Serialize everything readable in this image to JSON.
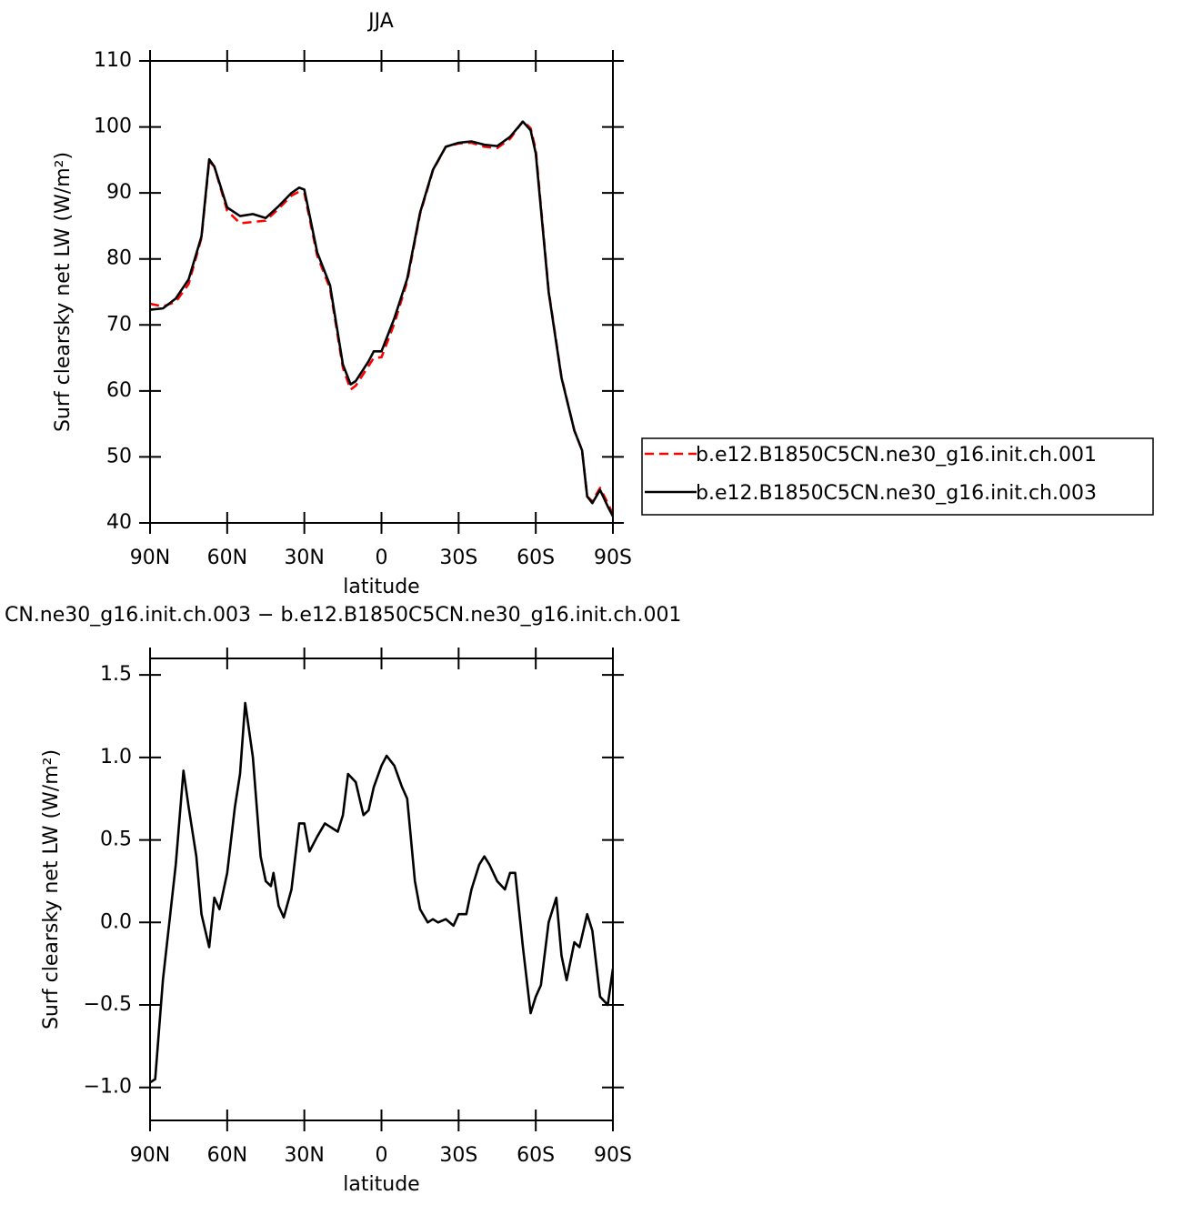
{
  "chart_data": [
    {
      "type": "line",
      "title": "JJA",
      "xlabel": "latitude",
      "ylabel": "Surf clearsky net LW (W/m²)",
      "x": [
        90,
        85,
        80,
        75,
        70,
        67,
        65,
        60,
        55,
        50,
        45,
        40,
        35,
        32,
        30,
        25,
        20,
        15,
        12,
        10,
        5,
        3,
        0,
        -5,
        -10,
        -15,
        -20,
        -25,
        -30,
        -35,
        -40,
        -45,
        -50,
        -55,
        -58,
        -60,
        -65,
        -70,
        -75,
        -78,
        -80,
        -82,
        -85,
        -88,
        -90
      ],
      "series": [
        {
          "name": "b.e12.B1850C5CN.ne30_g16.init.ch.001",
          "color": "#ff0000",
          "linestyle": "dashed",
          "values": [
            73.2,
            72.8,
            73.5,
            76.2,
            83.2,
            94.8,
            94,
            87.3,
            85.4,
            85.6,
            85.8,
            87.6,
            89.6,
            90.2,
            90,
            80.5,
            75.5,
            63.5,
            60.2,
            60.8,
            63.8,
            65,
            65.1,
            70.2,
            76.6,
            86.8,
            93.4,
            97,
            97.5,
            97.6,
            97,
            96.8,
            98.2,
            100.9,
            99.8,
            96.5,
            75.2,
            62.1,
            54,
            51,
            44,
            43.3,
            45.3,
            43,
            41.3
          ]
        },
        {
          "name": "b.e12.B1850C5CN.ne30_g16.init.ch.003",
          "color": "#000000",
          "linestyle": "solid",
          "values": [
            72.3,
            72.5,
            74.0,
            76.9,
            83.4,
            95.1,
            94,
            87.8,
            86.5,
            86.8,
            86.2,
            88,
            90,
            90.8,
            90.5,
            81,
            76,
            64,
            61,
            61.5,
            64.5,
            66,
            66,
            71,
            77,
            87,
            93.5,
            97,
            97.6,
            97.8,
            97.3,
            97.1,
            98.5,
            100.8,
            99.5,
            96,
            75,
            62,
            54,
            51,
            44,
            43,
            45,
            42.5,
            41
          ]
        }
      ],
      "xlim": [
        90,
        -90
      ],
      "xticks": [
        {
          "value": 90,
          "label": "90N"
        },
        {
          "value": 60,
          "label": "60N"
        },
        {
          "value": 30,
          "label": "30N"
        },
        0,
        {
          "value": -30,
          "label": "30S"
        },
        {
          "value": -60,
          "label": "60S"
        },
        {
          "value": -90,
          "label": "90S"
        }
      ],
      "ylim": [
        40,
        110
      ],
      "yticks": [
        40,
        50,
        60,
        70,
        80,
        90,
        100,
        110
      ],
      "legend": "right"
    },
    {
      "type": "line",
      "title": "CN.ne30_g16.init.ch.003 − b.e12.B1850C5CN.ne30_g16.init.ch.001",
      "xlabel": "latitude",
      "ylabel": "Surf clearsky net LW (W/m²)",
      "x": [
        90,
        88,
        85,
        80,
        77,
        75,
        72,
        70,
        67,
        65,
        63,
        60,
        57,
        55,
        53,
        50,
        47,
        45,
        43,
        42,
        40,
        38,
        35,
        32,
        30,
        28,
        25,
        22,
        20,
        17,
        15,
        13,
        10,
        7,
        5,
        3,
        0,
        -2,
        -5,
        -8,
        -10,
        -13,
        -15,
        -18,
        -20,
        -22,
        -25,
        -28,
        -30,
        -33,
        -35,
        -38,
        -40,
        -42,
        -45,
        -48,
        -50,
        -52,
        -55,
        -58,
        -60,
        -62,
        -65,
        -68,
        -70,
        -72,
        -75,
        -77,
        -80,
        -82,
        -85,
        -88,
        -90
      ],
      "series": [
        {
          "color": "#000000",
          "linestyle": "solid",
          "values": [
            -0.97,
            -0.95,
            -0.35,
            0.35,
            0.92,
            0.7,
            0.4,
            0.05,
            -0.15,
            0.15,
            0.08,
            0.3,
            0.7,
            0.9,
            1.33,
            1.0,
            0.4,
            0.25,
            0.22,
            0.3,
            0.1,
            0.03,
            0.2,
            0.6,
            0.6,
            0.43,
            0.52,
            0.6,
            0.58,
            0.55,
            0.65,
            0.9,
            0.85,
            0.65,
            0.68,
            0.82,
            0.95,
            1.01,
            0.95,
            0.82,
            0.75,
            0.25,
            0.08,
            0.0,
            0.02,
            0.0,
            0.02,
            -0.02,
            0.05,
            0.05,
            0.2,
            0.35,
            0.4,
            0.35,
            0.25,
            0.2,
            0.3,
            0.3,
            -0.15,
            -0.55,
            -0.45,
            -0.38,
            0.0,
            0.15,
            -0.2,
            -0.35,
            -0.12,
            -0.15,
            0.05,
            -0.05,
            -0.45,
            -0.5,
            -0.28
          ]
        }
      ],
      "xlim": [
        90,
        -90
      ],
      "xticks": [
        {
          "value": 90,
          "label": "90N"
        },
        {
          "value": 60,
          "label": "60N"
        },
        {
          "value": 30,
          "label": "30N"
        },
        0,
        {
          "value": -30,
          "label": "30S"
        },
        {
          "value": -60,
          "label": "60S"
        },
        {
          "value": -90,
          "label": "90S"
        }
      ],
      "ylim": [
        -1.2,
        1.6
      ],
      "yticks": [
        {
          "value": -1.0,
          "label": "−1.0"
        },
        {
          "value": -0.5,
          "label": "−0.5"
        },
        {
          "value": 0,
          "label": "0.0"
        },
        0.5,
        {
          "value": 1.0,
          "label": "1.0"
        },
        1.5
      ]
    }
  ]
}
